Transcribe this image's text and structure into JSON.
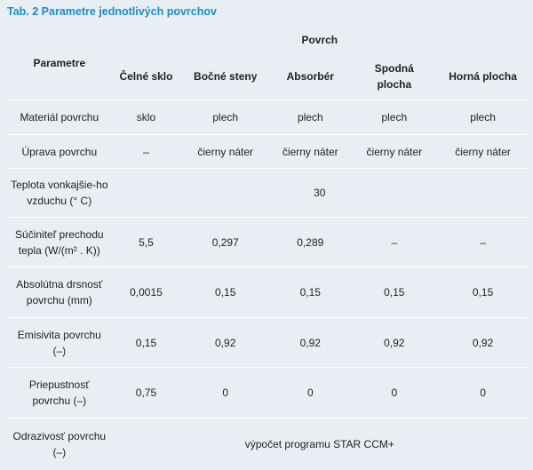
{
  "caption": "Tab. 2 Parametre jednotlivých povrchov",
  "header": {
    "parameter": "Parametre",
    "group": "Povrch",
    "columns": [
      "Čelné sklo",
      "Bočné steny",
      "Absorbér",
      "Spodná plocha",
      "Horná plocha"
    ]
  },
  "rows": [
    {
      "label": "Materiál povrchu",
      "values": [
        "sklo",
        "plech",
        "plech",
        "plech",
        "plech"
      ]
    },
    {
      "label": "Úprava povrchu",
      "values": [
        "–",
        "čierny náter",
        "čierny náter",
        "čierny náter",
        "čierny náter"
      ]
    },
    {
      "label": "Teplota vonkajšie-ho vzduchu (° C)",
      "merged": "30"
    },
    {
      "label": "Súčiniteľ prechodu tepla (W/(m² . K))",
      "values": [
        "5,5",
        "0,297",
        "0,289",
        "–",
        "–"
      ]
    },
    {
      "label": "Absolútna drsnosť povrchu (mm)",
      "values": [
        "0,0015",
        "0,15",
        "0,15",
        "0,15",
        "0,15"
      ]
    },
    {
      "label": "Emisivita povrchu (–)",
      "values": [
        "0,15",
        "0,92",
        "0,92",
        "0,92",
        "0,92"
      ]
    },
    {
      "label": "Priepustnosť povrchu (–)",
      "values": [
        "0,75",
        "0",
        "0",
        "0",
        "0"
      ]
    },
    {
      "label": "Odrazivosť povrchu (–)",
      "merged": "výpočet programu STAR CCM+"
    }
  ]
}
